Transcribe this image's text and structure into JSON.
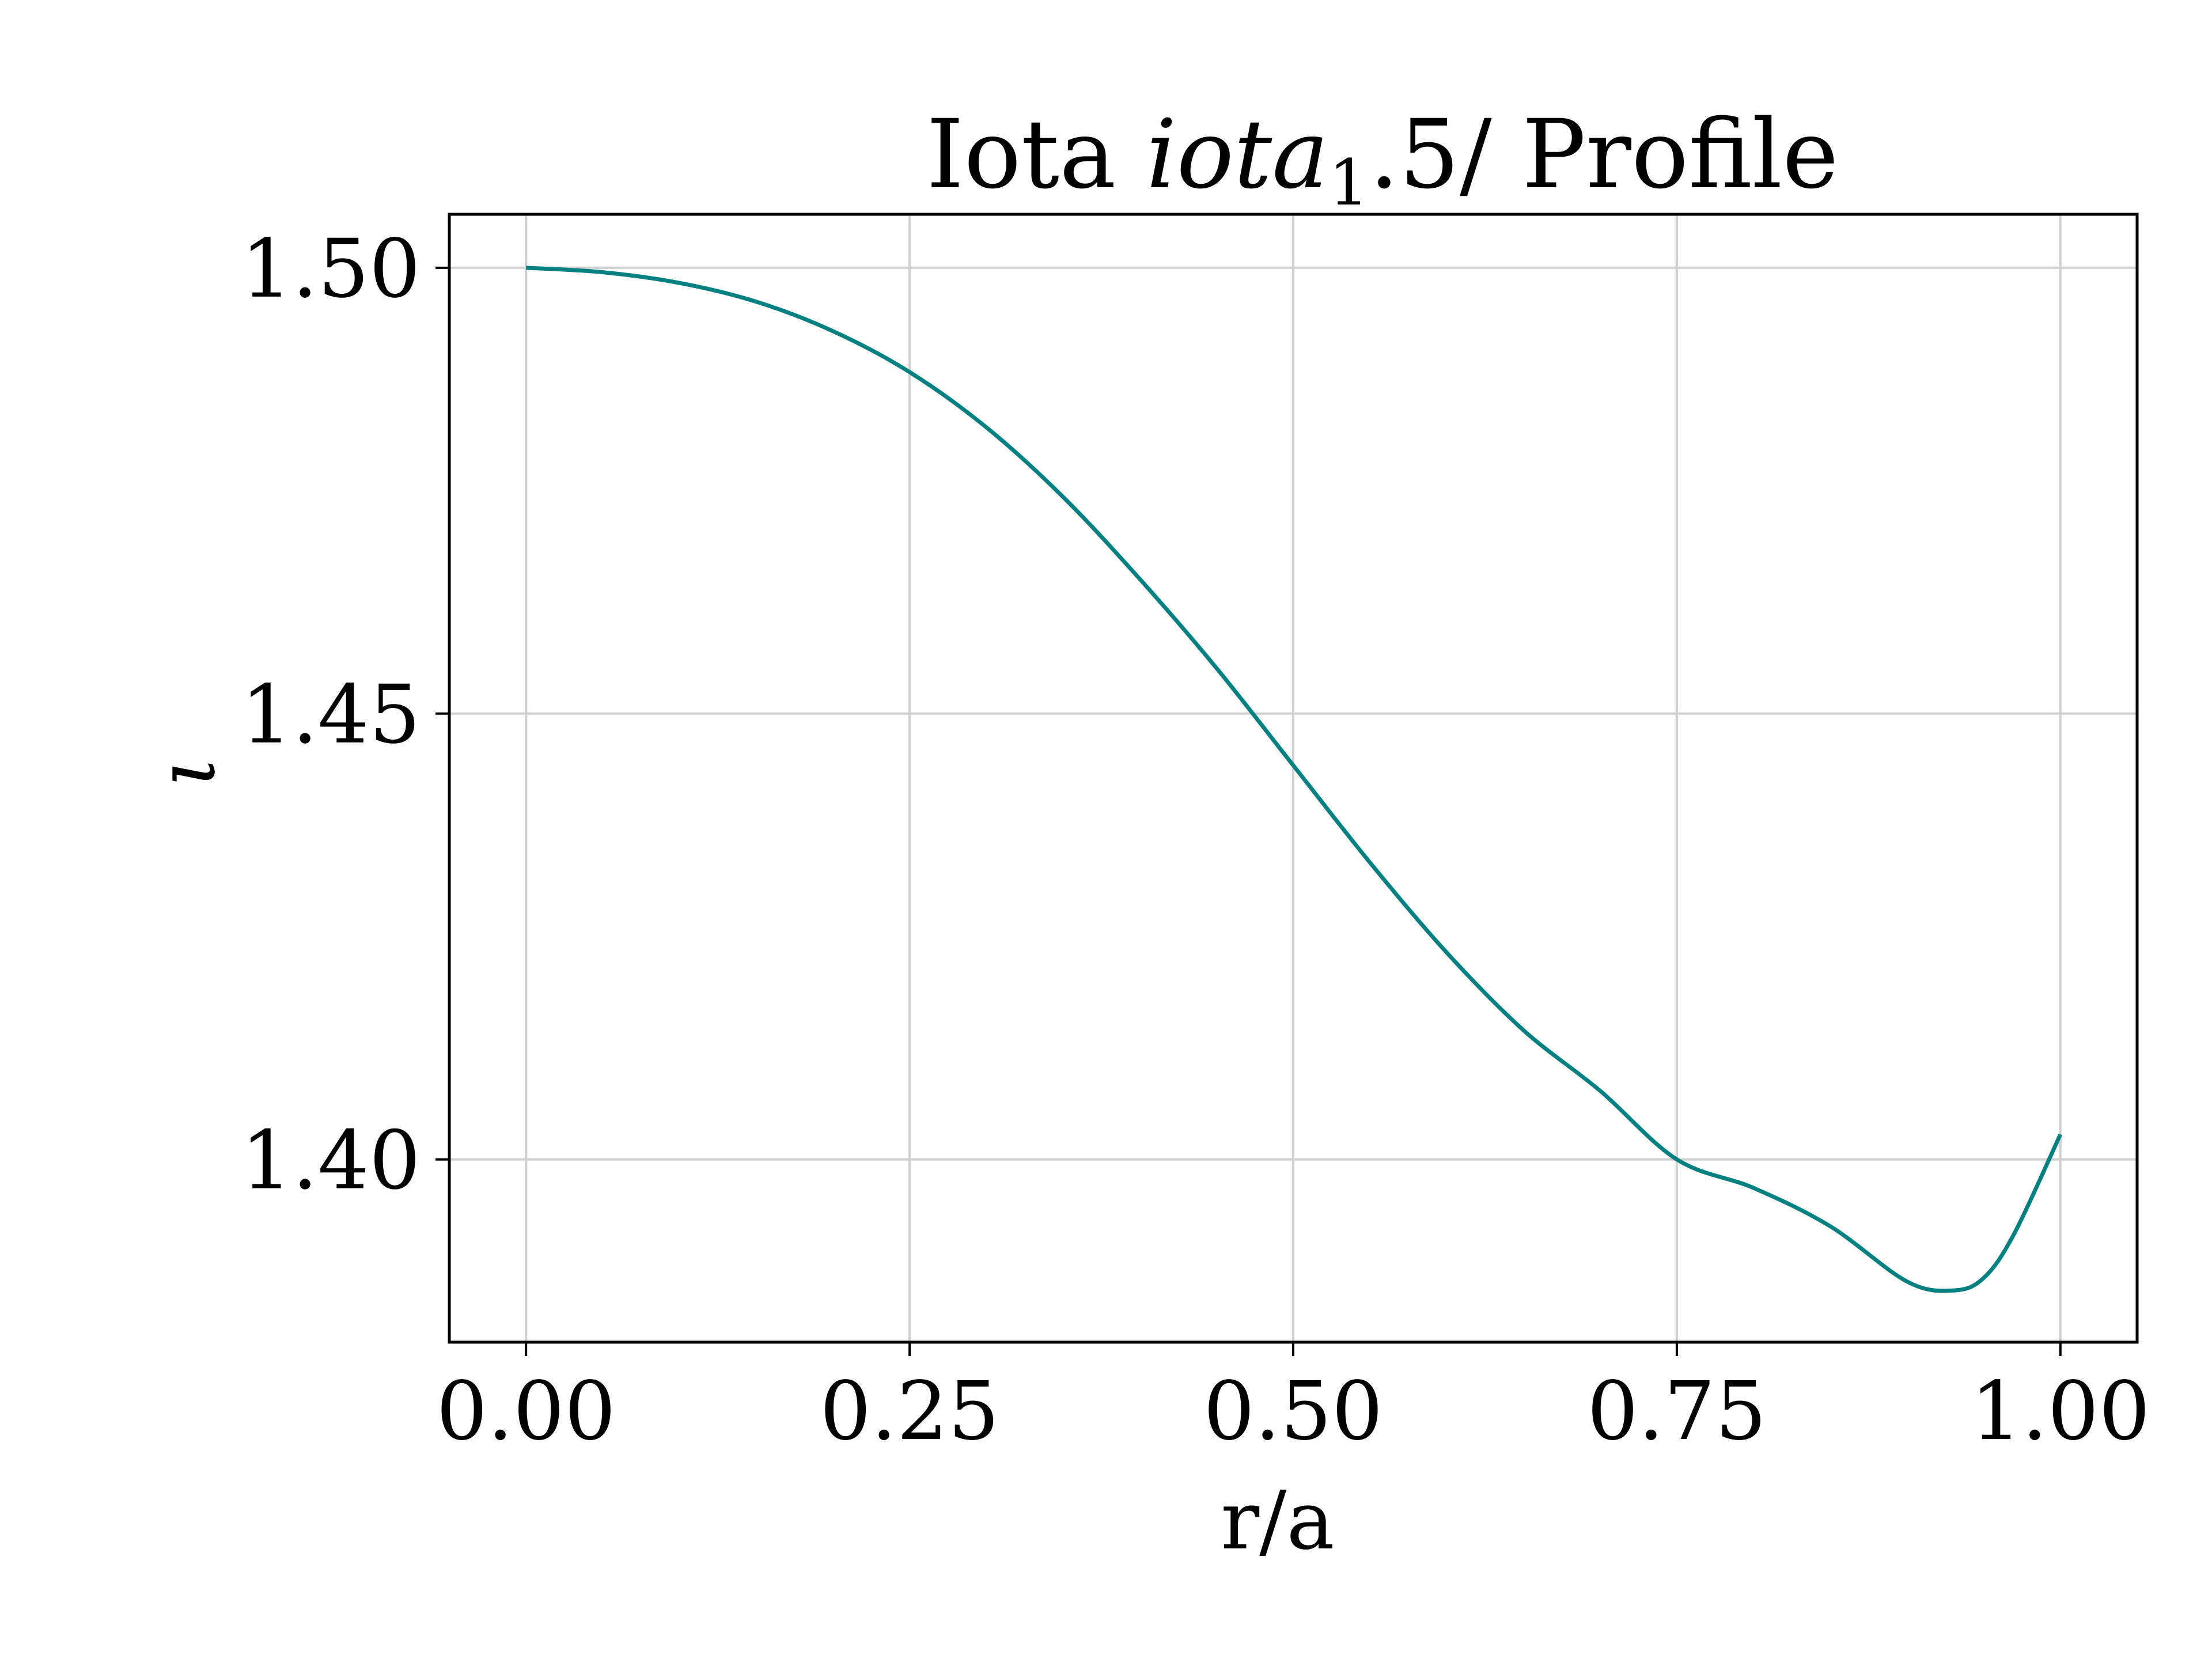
{
  "chart_data": {
    "type": "line",
    "title": "Iota iota_1.5/ Profile",
    "title_parts": {
      "prefix": "Iota ",
      "italic": "iota",
      "subscript": "1",
      "suffix": ".5/ Profile"
    },
    "xlabel": "r/a",
    "ylabel": "ι",
    "xlim": [
      -0.05,
      1.05
    ],
    "ylim": [
      1.3795,
      1.506
    ],
    "grid": true,
    "x_ticks": [
      0.0,
      0.25,
      0.5,
      0.75,
      1.0
    ],
    "x_tick_labels": [
      "0.00",
      "0.25",
      "0.50",
      "0.75",
      "1.00"
    ],
    "y_ticks": [
      1.4,
      1.45,
      1.5
    ],
    "y_tick_labels": [
      "1.40",
      "1.45",
      "1.50"
    ],
    "colors": {
      "line": "#008080",
      "grid": "#d0d0d0",
      "axes": "#000000"
    },
    "series": [
      {
        "x": [
          0.0,
          0.05,
          0.1,
          0.15,
          0.2,
          0.25,
          0.3,
          0.35,
          0.4,
          0.45,
          0.5,
          0.55,
          0.6,
          0.65,
          0.7,
          0.75,
          0.8,
          0.85,
          0.9,
          0.93,
          0.95,
          0.97,
          1.0
        ],
        "values": [
          1.5,
          1.4995,
          1.4983,
          1.4962,
          1.4929,
          1.4883,
          1.4821,
          1.4743,
          1.4651,
          1.4551,
          1.4442,
          1.4333,
          1.4232,
          1.4145,
          1.4077,
          1.4,
          1.3968,
          1.3925,
          1.3863,
          1.3853,
          1.3867,
          1.3917,
          1.4028
        ]
      }
    ]
  }
}
